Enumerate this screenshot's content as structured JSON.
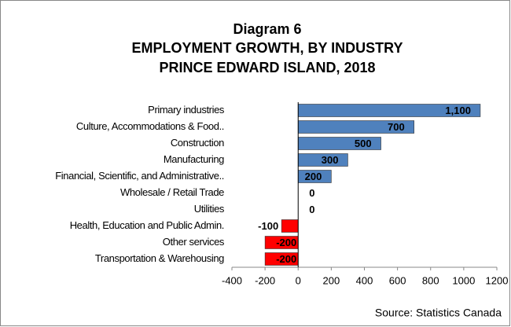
{
  "chart_data": {
    "type": "hbar",
    "title": [
      "Diagram 6",
      "EMPLOYMENT GROWTH, BY INDUSTRY",
      "PRINCE EDWARD ISLAND, 2018"
    ],
    "categories": [
      "Primary industries",
      "Culture, Accommodations & Food..",
      "Construction",
      "Manufacturing",
      "Financial, Scientific, and Administrative..",
      "Wholesale / Retail Trade",
      "Utilities",
      "Health, Education and Public Admin.",
      "Other services",
      "Transportation & Warehousing"
    ],
    "values": [
      1100,
      700,
      500,
      300,
      200,
      0,
      0,
      -100,
      -200,
      -200
    ],
    "value_labels": [
      "1,100",
      "700",
      "500",
      "300",
      "200",
      "0",
      "0",
      "-100",
      "-200",
      "-200"
    ],
    "positive_color": "#4f81bd",
    "negative_color": "#ff0000",
    "xlim": [
      -400,
      1200
    ],
    "xticks": [
      -400,
      -200,
      0,
      200,
      400,
      600,
      800,
      1000,
      1200
    ],
    "source": "Source: Statistics Canada"
  }
}
